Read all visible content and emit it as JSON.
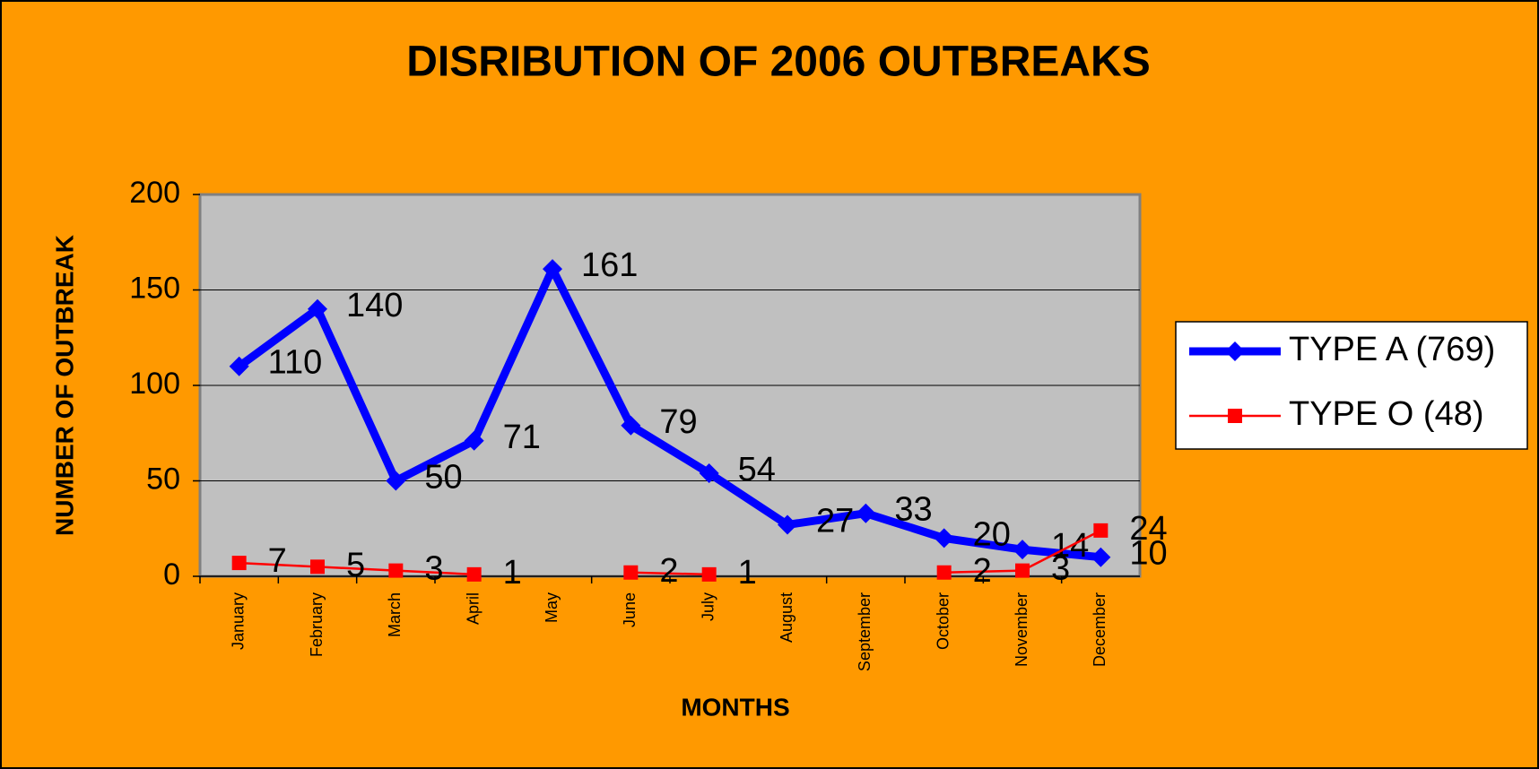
{
  "chart_data": {
    "type": "line",
    "title": "DISRIBUTION OF 2006 OUTBREAKS",
    "x_label": "MONTHS",
    "y_label": "NUMBER OF OUTBREAK",
    "categories": [
      "January",
      "February",
      "March",
      "April",
      "May",
      "June",
      "July",
      "August",
      "September",
      "October",
      "November",
      "December"
    ],
    "series": [
      {
        "name": "TYPE A (769)",
        "color": "#0000ff",
        "marker": "diamond",
        "values": [
          110,
          140,
          50,
          71,
          161,
          79,
          54,
          27,
          33,
          20,
          14,
          10
        ]
      },
      {
        "name": "TYPE O (48)",
        "color": "#ff0000",
        "marker": "square",
        "values": [
          7,
          5,
          3,
          1,
          null,
          2,
          1,
          null,
          null,
          2,
          3,
          24
        ]
      }
    ],
    "ylim": [
      0,
      200
    ],
    "yticks": [
      0,
      50,
      100,
      150,
      200
    ],
    "grid": true,
    "legend": "right"
  }
}
